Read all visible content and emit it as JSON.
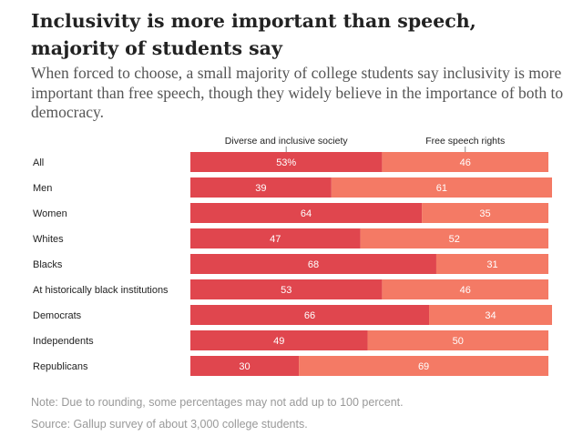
{
  "header": {
    "title": "Inclusivity is more important than speech, majority of students say",
    "subtitle": "When forced to choose, a small majority of college students say inclusivity is more important than free speech, though they widely believe in the importance of both to democracy."
  },
  "footer": {
    "note": "Note: Due to rounding, some percentages may not add up to 100 percent.",
    "source": "Source: Gallup survey of about 3,000 college students."
  },
  "chart_data": {
    "type": "bar",
    "orientation": "horizontal",
    "stacked": true,
    "categories": [
      "All",
      "Men",
      "Women",
      "Whites",
      "Blacks",
      "At historically black institutions",
      "Democrats",
      "Independents",
      "Republicans"
    ],
    "series": [
      {
        "name": "Diverse and inclusive society",
        "values": [
          53,
          39,
          64,
          47,
          68,
          53,
          66,
          49,
          30
        ],
        "color": "#e0464e"
      },
      {
        "name": "Free speech rights",
        "values": [
          46,
          61,
          35,
          52,
          31,
          46,
          34,
          50,
          69
        ],
        "color": "#f47a65"
      }
    ],
    "value_labels": [
      [
        "53%",
        "39",
        "64",
        "47",
        "68",
        "53",
        "66",
        "49",
        "30"
      ],
      [
        "46",
        "61",
        "35",
        "52",
        "31",
        "46",
        "34",
        "50",
        "69"
      ]
    ],
    "xlim": [
      0,
      100
    ],
    "legend": "top",
    "grid": false
  }
}
